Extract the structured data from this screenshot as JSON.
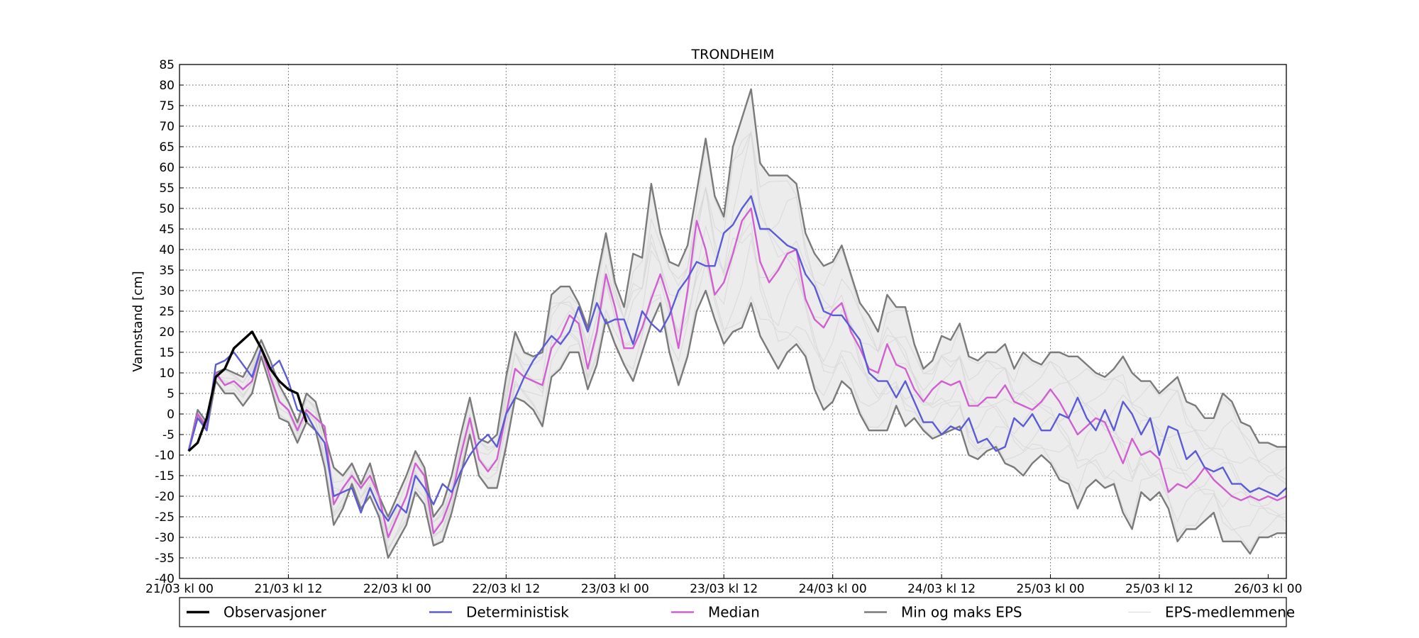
{
  "chart_data": {
    "type": "line",
    "title": "TRONDHEIM",
    "xlabel": "",
    "ylabel": "Vannstand [cm]",
    "x_ticks": [
      "21/03 kl 00",
      "21/03 kl 12",
      "22/03 kl 00",
      "22/03 kl 12",
      "23/03 kl 00",
      "23/03 kl 12",
      "24/03 kl 00",
      "24/03 kl 12",
      "25/03 kl 00",
      "25/03 kl 12",
      "26/03 kl 00"
    ],
    "x_unit": "hours from 21/03 kl 00",
    "xlim": [
      0,
      122
    ],
    "ylim": [
      -40,
      85
    ],
    "y_ticks": [
      -40,
      -35,
      -30,
      -25,
      -20,
      -15,
      -10,
      -5,
      0,
      5,
      10,
      15,
      20,
      25,
      30,
      35,
      40,
      45,
      50,
      55,
      60,
      65,
      70,
      75,
      80,
      85
    ],
    "grid": true,
    "legend_position": "bottom",
    "series": [
      {
        "name": "Observasjoner",
        "color": "#000000",
        "x": [
          1,
          2,
          3,
          4,
          5,
          6,
          7,
          8,
          9,
          10,
          11,
          12,
          13,
          14
        ],
        "y": [
          -9,
          -7,
          -1,
          9,
          11,
          16,
          18,
          20,
          16,
          11,
          8,
          6,
          5,
          -2
        ]
      },
      {
        "name": "Deterministisk",
        "color": "#5b5bd6",
        "x": [
          1,
          2,
          3,
          4,
          5,
          6,
          7,
          8,
          9,
          10,
          11,
          12,
          13,
          14,
          15,
          16,
          17,
          18,
          19,
          20,
          21,
          22,
          23,
          24,
          25,
          26,
          27,
          28,
          29,
          30,
          31,
          32,
          33,
          34,
          35,
          36,
          37,
          38,
          39,
          40,
          41,
          42,
          43,
          44,
          45,
          46,
          47,
          48,
          49,
          50,
          51,
          52,
          53,
          54,
          55,
          56,
          57,
          58,
          59,
          60,
          61,
          62,
          63,
          64,
          65,
          66,
          67,
          68,
          69,
          70,
          71,
          72,
          73,
          74,
          75,
          76,
          77,
          78,
          79,
          80,
          81,
          82,
          83,
          84,
          85,
          86,
          87,
          88,
          89,
          90,
          91,
          92,
          93,
          94,
          95,
          96,
          97,
          98,
          99,
          100,
          101,
          102,
          103,
          104,
          105,
          106,
          107,
          108,
          109,
          110,
          111,
          112,
          113,
          114,
          115,
          116,
          117,
          118,
          119,
          120,
          121,
          122
        ],
        "y": [
          -9,
          -1,
          -4,
          12,
          13,
          15,
          12,
          9,
          16,
          11,
          13,
          8,
          1,
          0,
          -4,
          -7,
          -20,
          -19,
          -18,
          -24,
          -18,
          -23,
          -26,
          -22,
          -24,
          -15,
          -18,
          -22,
          -17,
          -19,
          -14,
          -10,
          -7,
          -5,
          -8,
          0,
          4,
          9,
          13,
          16,
          19,
          17,
          20,
          26,
          20,
          27,
          22,
          23,
          23,
          17,
          25,
          22,
          20,
          24,
          30,
          33,
          37,
          36,
          36,
          44,
          46,
          50,
          53,
          45,
          45,
          43,
          41,
          40,
          34,
          31,
          25,
          24,
          24,
          21,
          18,
          10,
          8,
          8,
          4,
          8,
          3,
          -2,
          -2,
          -5,
          -3,
          -4,
          -1,
          -7,
          -6,
          -9,
          -8,
          -1,
          -3,
          0,
          -4,
          -4,
          0,
          -1,
          4,
          -1,
          -4,
          1,
          -4,
          3,
          0,
          -5,
          -1,
          -10,
          -3,
          -4,
          -11,
          -9,
          -13,
          -14,
          -13,
          -17,
          -17,
          -19,
          -18,
          -19,
          -20,
          -18
        ]
      },
      {
        "name": "Median",
        "color": "#d15fd1",
        "x": [
          1,
          2,
          3,
          4,
          5,
          6,
          7,
          8,
          9,
          10,
          11,
          12,
          13,
          14,
          15,
          16,
          17,
          18,
          19,
          20,
          21,
          22,
          23,
          24,
          25,
          26,
          27,
          28,
          29,
          30,
          31,
          32,
          33,
          34,
          35,
          36,
          37,
          38,
          39,
          40,
          41,
          42,
          43,
          44,
          45,
          46,
          47,
          48,
          49,
          50,
          51,
          52,
          53,
          54,
          55,
          56,
          57,
          58,
          59,
          60,
          61,
          62,
          63,
          64,
          65,
          66,
          67,
          68,
          69,
          70,
          71,
          72,
          73,
          74,
          75,
          76,
          77,
          78,
          79,
          80,
          81,
          82,
          83,
          84,
          85,
          86,
          87,
          88,
          89,
          90,
          91,
          92,
          93,
          94,
          95,
          96,
          97,
          98,
          99,
          100,
          101,
          102,
          103,
          104,
          105,
          106,
          107,
          108,
          109,
          110,
          111,
          112,
          113,
          114,
          115,
          116,
          117,
          118,
          119,
          120,
          121,
          122
        ],
        "y": [
          -9,
          0,
          -3,
          10,
          7,
          8,
          6,
          8,
          16,
          9,
          3,
          1,
          -4,
          1,
          -1,
          -3,
          -22,
          -18,
          -15,
          -18,
          -15,
          -20,
          -30,
          -25,
          -20,
          -12,
          -15,
          -29,
          -26,
          -20,
          -10,
          -1,
          -11,
          -14,
          -11,
          0,
          11,
          9,
          8,
          7,
          16,
          19,
          24,
          22,
          11,
          20,
          34,
          26,
          16,
          16,
          21,
          28,
          34,
          27,
          16,
          30,
          47,
          40,
          29,
          32,
          39,
          47,
          50,
          37,
          32,
          35,
          39,
          40,
          28,
          23,
          21,
          25,
          27,
          20,
          16,
          11,
          10,
          17,
          12,
          11,
          6,
          3,
          6,
          8,
          7,
          8,
          2,
          2,
          4,
          4,
          7,
          3,
          2,
          1,
          3,
          6,
          3,
          -1,
          -5,
          -3,
          -1,
          -2,
          -7,
          -12,
          -6,
          -10,
          -9,
          -11,
          -19,
          -17,
          -18,
          -16,
          -13,
          -16,
          -18,
          -20,
          -21,
          -20,
          -21,
          -20,
          -21,
          -20
        ]
      },
      {
        "name": "Min og maks EPS",
        "color": "#7a7a7a",
        "x": [
          1,
          2,
          3,
          4,
          5,
          6,
          7,
          8,
          9,
          10,
          11,
          12,
          13,
          14,
          15,
          16,
          17,
          18,
          19,
          20,
          21,
          22,
          23,
          24,
          25,
          26,
          27,
          28,
          29,
          30,
          31,
          32,
          33,
          34,
          35,
          36,
          37,
          38,
          39,
          40,
          41,
          42,
          43,
          44,
          45,
          46,
          47,
          48,
          49,
          50,
          51,
          52,
          53,
          54,
          55,
          56,
          57,
          58,
          59,
          60,
          61,
          62,
          63,
          64,
          65,
          66,
          67,
          68,
          69,
          70,
          71,
          72,
          73,
          74,
          75,
          76,
          77,
          78,
          79,
          80,
          81,
          82,
          83,
          84,
          85,
          86,
          87,
          88,
          89,
          90,
          91,
          92,
          93,
          94,
          95,
          96,
          97,
          98,
          99,
          100,
          101,
          102,
          103,
          104,
          105,
          106,
          107,
          108,
          109,
          110,
          111,
          112,
          113,
          114,
          115,
          116,
          117,
          118,
          119,
          120,
          121,
          122
        ],
        "y": [
          -9,
          1,
          -2,
          10,
          11,
          10,
          9,
          13,
          18,
          13,
          7,
          3,
          -2,
          5,
          3,
          -5,
          -13,
          -15,
          -12,
          -17,
          -12,
          -20,
          -25,
          -20,
          -15,
          -9,
          -13,
          -25,
          -22,
          -15,
          -5,
          4,
          -6,
          -7,
          -5,
          9,
          20,
          15,
          14,
          15,
          29,
          31,
          31,
          27,
          21,
          33,
          44,
          32,
          26,
          39,
          38,
          56,
          44,
          37,
          36,
          41,
          54,
          67,
          53,
          48,
          65,
          72,
          79,
          61,
          58,
          58,
          58,
          56,
          44,
          39,
          36,
          37,
          41,
          34,
          27,
          24,
          20,
          29,
          26,
          26,
          17,
          11,
          13,
          19,
          18,
          22,
          14,
          13,
          15,
          15,
          17,
          11,
          15,
          13,
          12,
          15,
          15,
          14,
          14,
          12,
          10,
          9,
          11,
          14,
          10,
          8,
          8,
          5,
          7,
          9,
          3,
          2,
          -1,
          -1,
          5,
          3,
          -2,
          -3,
          -7,
          -7,
          -8,
          -8
        ],
        "y_min": [
          -9,
          0,
          -4,
          8,
          5,
          5,
          2,
          5,
          14,
          7,
          -1,
          -2,
          -7,
          -2,
          -4,
          -13,
          -27,
          -23,
          -17,
          -23,
          -20,
          -25,
          -35,
          -31,
          -27,
          -19,
          -22,
          -32,
          -31,
          -24,
          -15,
          -5,
          -15,
          -18,
          -18,
          -8,
          4,
          3,
          1,
          -3,
          9,
          11,
          15,
          15,
          6,
          12,
          23,
          17,
          12,
          8,
          15,
          22,
          27,
          15,
          7,
          14,
          25,
          30,
          23,
          17,
          20,
          21,
          27,
          19,
          15,
          11,
          15,
          17,
          14,
          6,
          1,
          3,
          8,
          6,
          0,
          -4,
          -4,
          -4,
          2,
          -3,
          -1,
          -4,
          -6,
          -5,
          -4,
          -3,
          -10,
          -11,
          -9,
          -8,
          -12,
          -13,
          -15,
          -12,
          -10,
          -12,
          -16,
          -17,
          -23,
          -18,
          -16,
          -18,
          -17,
          -24,
          -28,
          -19,
          -21,
          -19,
          -23,
          -31,
          -28,
          -28,
          -26,
          -24,
          -31,
          -31,
          -31,
          -34,
          -30,
          -30,
          -29,
          -29
        ]
      },
      {
        "name": "EPS-medlemmene",
        "color": "#d9d9d9",
        "x": [],
        "y": []
      }
    ],
    "legend": [
      "Observasjoner",
      "Deterministisk",
      "Median",
      "Min og maks EPS",
      "EPS-medlemmene"
    ]
  }
}
